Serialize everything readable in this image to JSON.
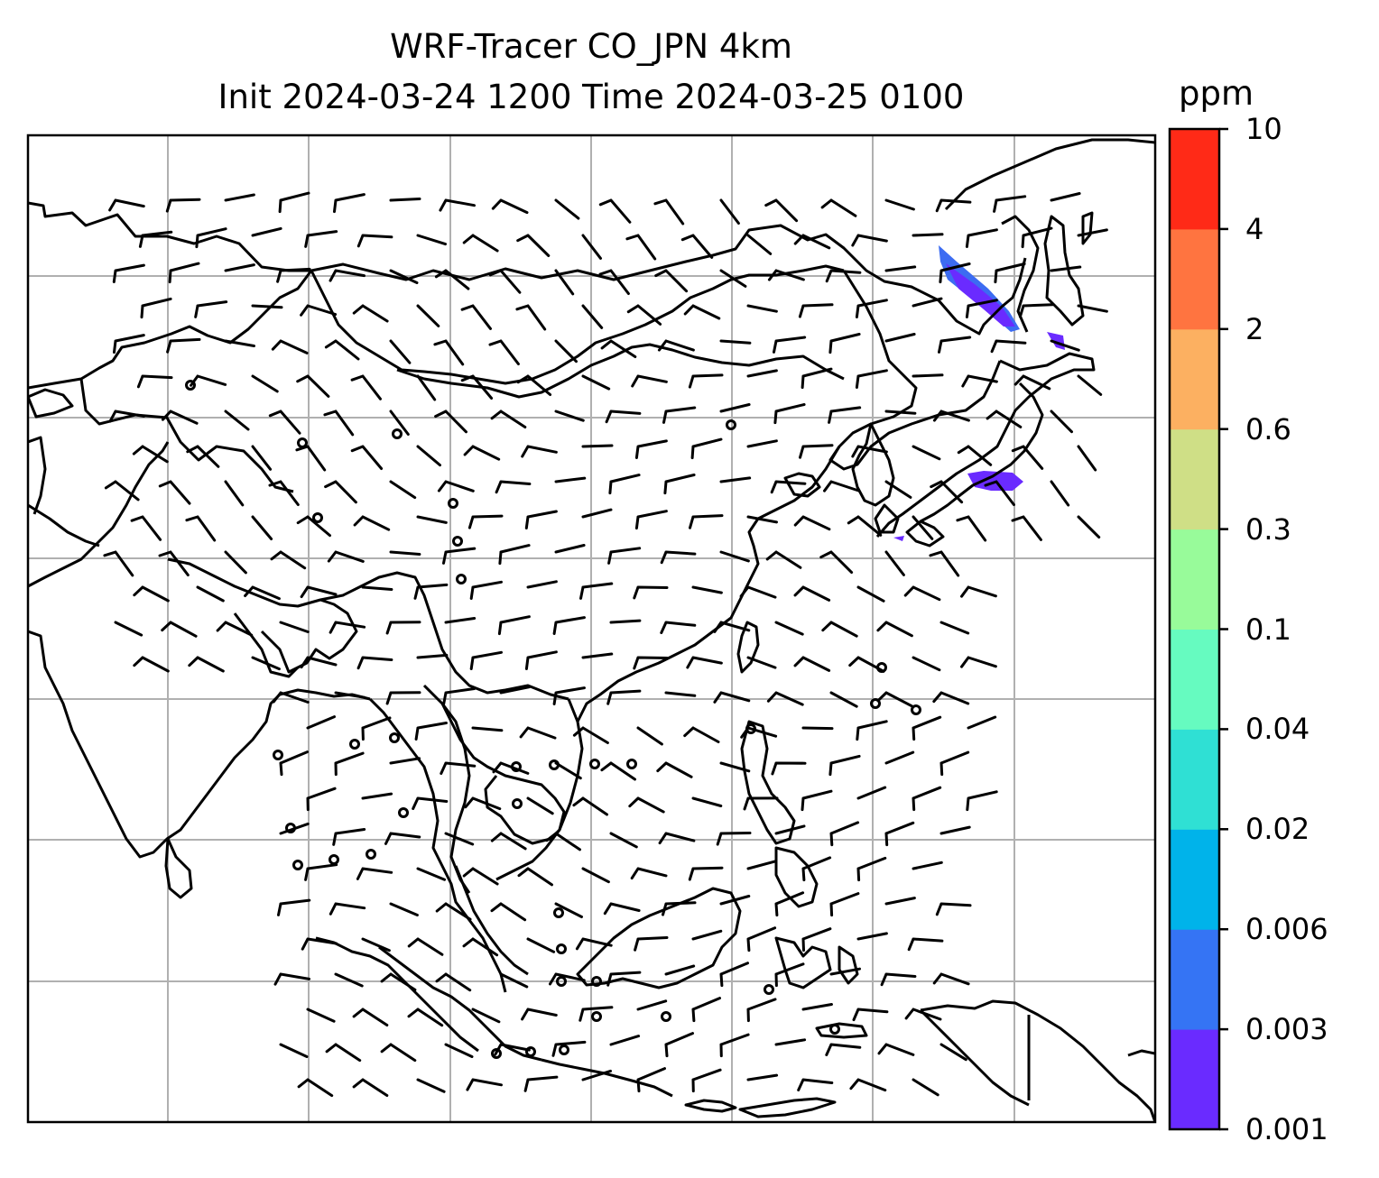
{
  "title": {
    "line1": "WRF-Tracer CO_JPN 4km",
    "line2": "Init 2024-03-24 1200 Time 2024-03-25 0100"
  },
  "colorbar": {
    "unit": "ppm",
    "levels": [
      "0.001",
      "0.003",
      "0.006",
      "0.02",
      "0.04",
      "0.1",
      "0.3",
      "0.6",
      "2",
      "4",
      "10"
    ],
    "colors": [
      "#6a2bff",
      "#3574f4",
      "#00b3ea",
      "#2fe0d4",
      "#66fbc0",
      "#98fb9a",
      "#cfdf86",
      "#fcb061",
      "#ff7440",
      "#ff2a17"
    ]
  },
  "map": {
    "grid_color": "#b0b0b0",
    "coast_color": "#000000",
    "plume_color": "#6a2bff"
  }
}
